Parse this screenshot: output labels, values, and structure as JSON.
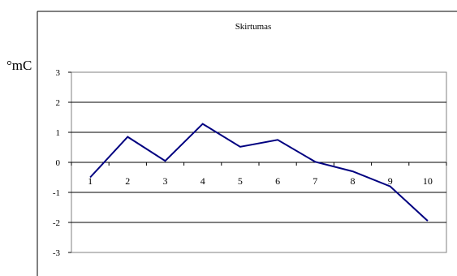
{
  "chart_data": {
    "type": "line",
    "title": "Skirtumas",
    "ylabel": "°mC",
    "xlabel": "",
    "categories": [
      "1",
      "2",
      "3",
      "4",
      "5",
      "6",
      "7",
      "8",
      "9",
      "10"
    ],
    "series": [
      {
        "values": [
          -0.5,
          0.85,
          0.05,
          1.28,
          0.52,
          0.75,
          0.02,
          -0.3,
          -0.8,
          -1.95
        ],
        "color": "#000080"
      }
    ],
    "ylim": [
      -3,
      3
    ],
    "yticks": [
      "3",
      "2",
      "1",
      "0",
      "-1",
      "-2",
      "-3"
    ],
    "grid": true,
    "legend": "none"
  }
}
